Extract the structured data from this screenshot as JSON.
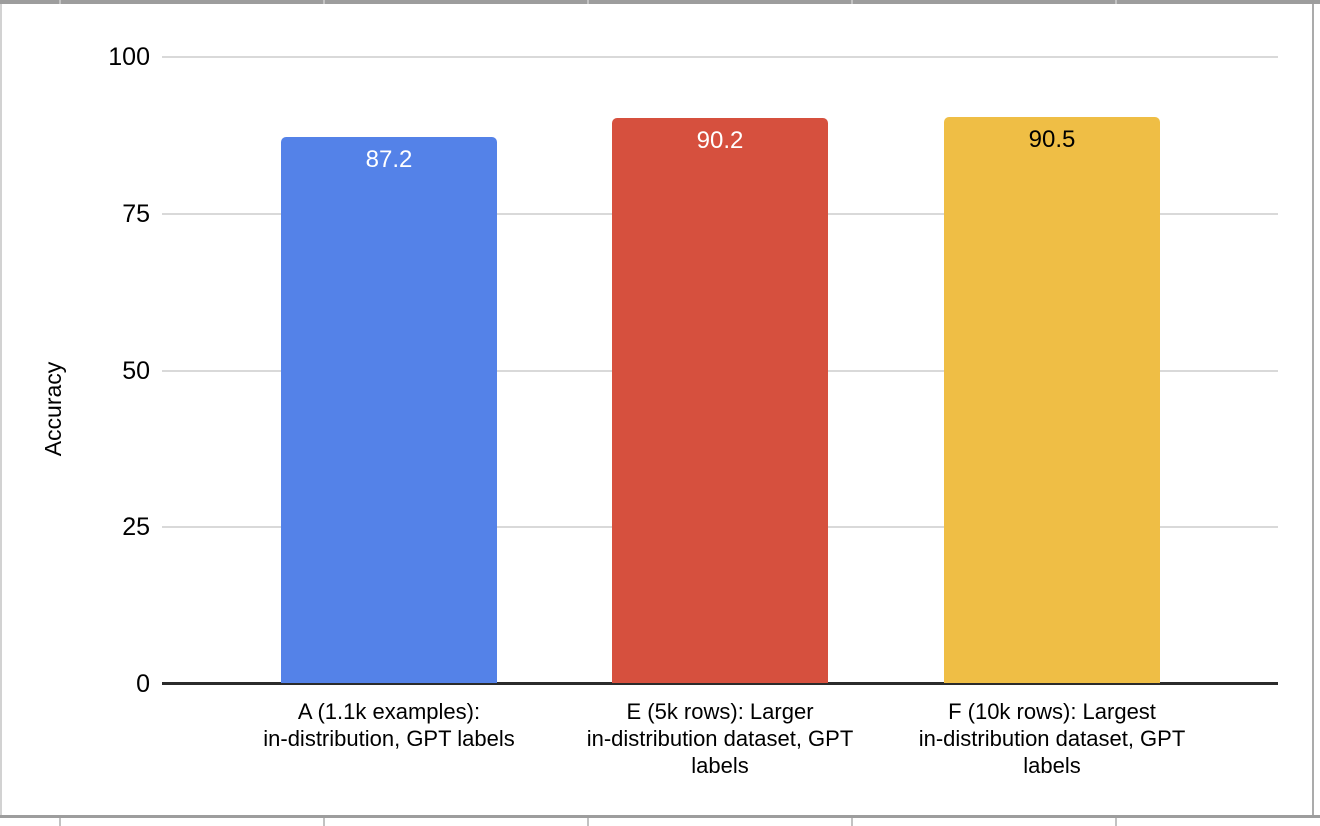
{
  "chart_data": {
    "type": "bar",
    "title": "",
    "xlabel": "",
    "ylabel": "Accuracy",
    "ylim": [
      0,
      100
    ],
    "yticks": [
      0,
      25,
      50,
      75,
      100
    ],
    "grid": true,
    "legend": "none",
    "categories": [
      "A (1.1k examples):\nin-distribution, GPT labels",
      "E (5k rows): Larger\nin-distribution dataset, GPT\nlabels",
      "F (10k rows): Largest\nin-distribution dataset, GPT\nlabels"
    ],
    "values": [
      87.2,
      90.2,
      90.5
    ],
    "value_labels": [
      "87.2",
      "90.2",
      "90.5"
    ],
    "bar_colors": [
      "#5482e8",
      "#d6503e",
      "#efbe45"
    ],
    "value_label_colors": [
      "#ffffff",
      "#ffffff",
      "#000000"
    ],
    "grid_color": "#d9d9d9",
    "axis_color": "#2b2b2b",
    "text_color": "#000000"
  }
}
